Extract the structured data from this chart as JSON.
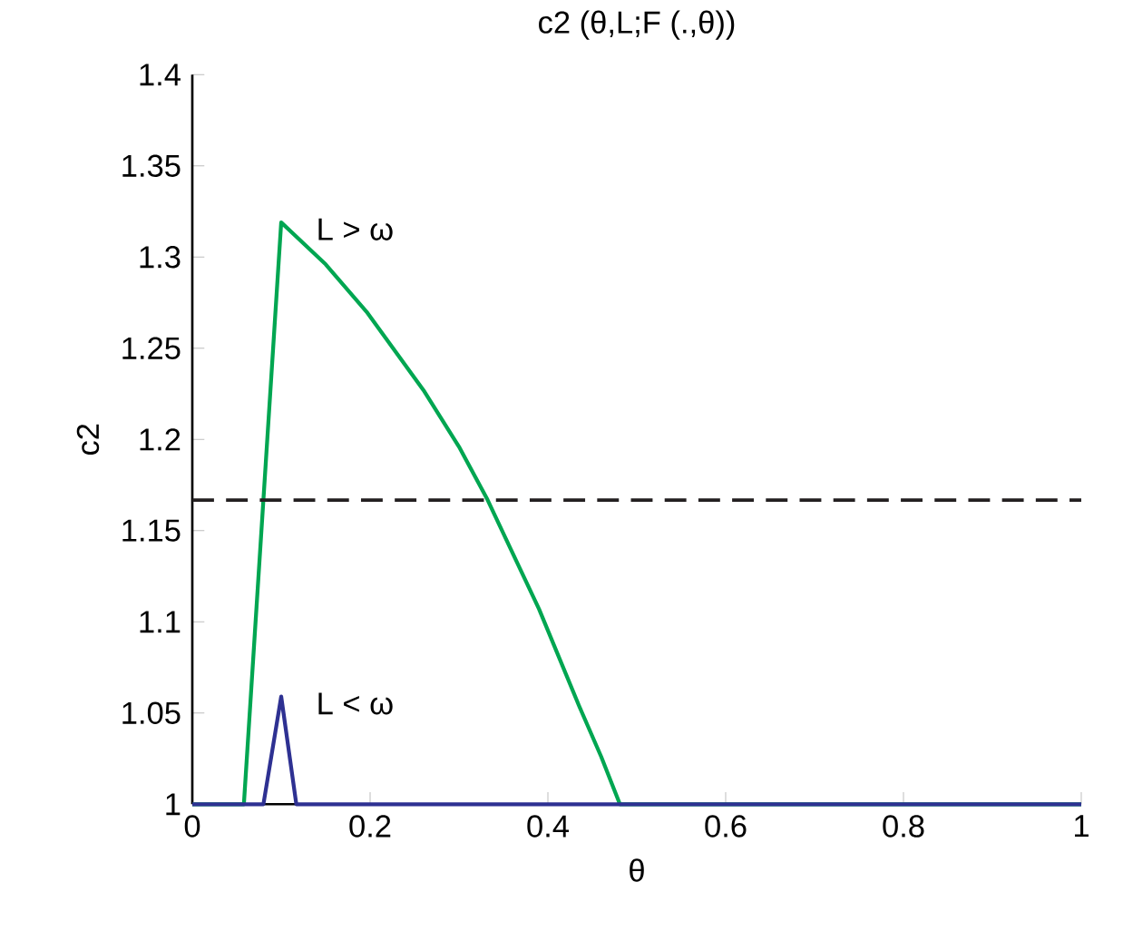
{
  "chart_data": {
    "type": "line",
    "title": "c2 (θ,L;F (.,θ))",
    "xlabel": "θ",
    "ylabel": "c2",
    "series": [
      {
        "color": "#00a651",
        "x": [
          0,
          0.058,
          0.1,
          0.15,
          0.196,
          0.26,
          0.3,
          0.332,
          0.36,
          0.39,
          0.435,
          0.46,
          0.481,
          1
        ],
        "values": [
          1,
          1,
          1.319,
          1.296,
          1.27,
          1.227,
          1.196,
          1.167,
          1.138,
          1.107,
          1.054,
          1.026,
          1,
          1
        ]
      },
      {
        "color": "#2e3192",
        "x": [
          0,
          0.08,
          0.1,
          0.117,
          1
        ],
        "values": [
          1,
          1,
          1.059,
          1,
          1
        ]
      }
    ],
    "ref_lines": [
      {
        "axis": "y",
        "value": 1.1667,
        "color": "#231f20",
        "line_style": "dashed"
      }
    ],
    "annotations": [
      {
        "text": "L > ω",
        "x": 0.1,
        "y": 1.319
      },
      {
        "text": "L < ω",
        "x": 0.1,
        "y": 1.059
      }
    ],
    "xlim": [
      0,
      1
    ],
    "ylim": [
      1,
      1.4
    ],
    "xticks": [
      0,
      0.2,
      0.4,
      0.6,
      0.8,
      1
    ],
    "yticks": [
      1,
      1.05,
      1.1,
      1.15,
      1.2,
      1.25,
      1.3,
      1.35,
      1.4
    ],
    "grid": false,
    "marker": "none",
    "line_style": "solid"
  }
}
